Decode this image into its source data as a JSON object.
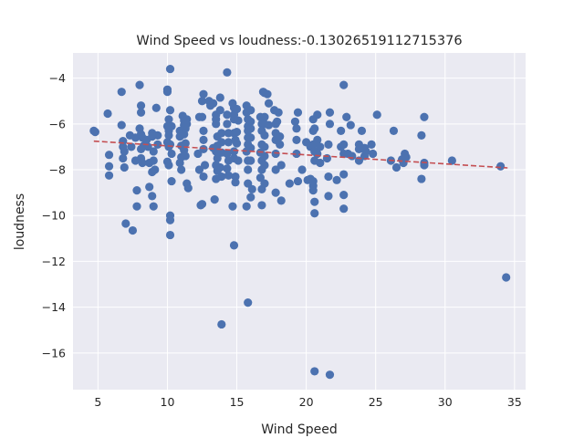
{
  "chart_data": {
    "type": "scatter",
    "title": "Wind Speed vs loudness:-0.13026519112715376",
    "xlabel": "Wind Speed",
    "ylabel": "loudness",
    "xlim": [
      3.2,
      35.8
    ],
    "ylim": [
      -17.6,
      -2.9
    ],
    "xticks": [
      5,
      10,
      15,
      20,
      25,
      30,
      35
    ],
    "yticks": [
      -16,
      -14,
      -12,
      -10,
      -8,
      -6,
      -4
    ],
    "grid": true,
    "colors": {
      "points": "#4c72b0",
      "trend": "#c44e52",
      "background": "#eaeaf2"
    },
    "trend_line": {
      "x": [
        4.7,
        34.5
      ],
      "y": [
        -6.75,
        -7.92
      ]
    },
    "points": [
      [
        4.7,
        -6.3
      ],
      [
        4.8,
        -6.35
      ],
      [
        5.7,
        -5.55
      ],
      [
        5.8,
        -7.35
      ],
      [
        5.8,
        -7.85
      ],
      [
        5.8,
        -8.25
      ],
      [
        6.7,
        -4.6
      ],
      [
        6.7,
        -6.05
      ],
      [
        6.8,
        -6.75
      ],
      [
        6.8,
        -7.0
      ],
      [
        6.9,
        -7.2
      ],
      [
        6.8,
        -7.5
      ],
      [
        6.9,
        -7.9
      ],
      [
        7.0,
        -10.35
      ],
      [
        7.3,
        -6.5
      ],
      [
        7.4,
        -7.0
      ],
      [
        7.5,
        -10.65
      ],
      [
        7.7,
        -6.6
      ],
      [
        7.7,
        -7.6
      ],
      [
        7.8,
        -8.9
      ],
      [
        7.8,
        -9.6
      ],
      [
        8.0,
        -4.3
      ],
      [
        8.1,
        -5.2
      ],
      [
        8.1,
        -5.5
      ],
      [
        8.0,
        -6.2
      ],
      [
        8.1,
        -6.45
      ],
      [
        8.2,
        -6.6
      ],
      [
        8.1,
        -7.1
      ],
      [
        8.1,
        -7.5
      ],
      [
        8.2,
        -7.7
      ],
      [
        8.3,
        -6.95
      ],
      [
        8.5,
        -6.7
      ],
      [
        8.6,
        -7.0
      ],
      [
        8.7,
        -7.7
      ],
      [
        8.7,
        -8.75
      ],
      [
        8.9,
        -6.4
      ],
      [
        8.9,
        -6.55
      ],
      [
        9.0,
        -7.2
      ],
      [
        9.0,
        -7.6
      ],
      [
        8.9,
        -8.1
      ],
      [
        9.1,
        -8.0
      ],
      [
        8.9,
        -9.15
      ],
      [
        9.0,
        -9.6
      ],
      [
        9.2,
        -5.3
      ],
      [
        9.3,
        -6.5
      ],
      [
        9.3,
        -6.9
      ],
      [
        10.0,
        -4.6
      ],
      [
        10.0,
        -4.5
      ],
      [
        10.1,
        -5.8
      ],
      [
        10.0,
        -6.1
      ],
      [
        10.1,
        -6.3
      ],
      [
        10.1,
        -6.5
      ],
      [
        10.0,
        -6.8
      ],
      [
        10.1,
        -7.0
      ],
      [
        10.0,
        -7.65
      ],
      [
        10.1,
        -7.8
      ],
      [
        10.2,
        -3.6
      ],
      [
        10.2,
        -5.4
      ],
      [
        10.3,
        -6.1
      ],
      [
        10.2,
        -6.9
      ],
      [
        10.3,
        -7.3
      ],
      [
        10.3,
        -8.5
      ],
      [
        10.2,
        -10.0
      ],
      [
        10.2,
        -10.2
      ],
      [
        10.2,
        -10.85
      ],
      [
        10.9,
        -6.3
      ],
      [
        10.9,
        -6.55
      ],
      [
        11.0,
        -6.95
      ],
      [
        11.0,
        -7.45
      ],
      [
        10.9,
        -7.7
      ],
      [
        11.0,
        -8.0
      ],
      [
        11.1,
        -5.65
      ],
      [
        11.2,
        -5.85
      ],
      [
        11.2,
        -6.05
      ],
      [
        11.2,
        -6.45
      ],
      [
        11.3,
        -6.85
      ],
      [
        11.2,
        -7.15
      ],
      [
        11.4,
        -5.8
      ],
      [
        11.4,
        -6.0
      ],
      [
        11.3,
        -6.2
      ],
      [
        11.4,
        -8.6
      ],
      [
        11.5,
        -8.8
      ],
      [
        11.3,
        -7.4
      ],
      [
        12.2,
        -7.3
      ],
      [
        12.3,
        -5.7
      ],
      [
        12.3,
        -8.0
      ],
      [
        12.4,
        -9.55
      ],
      [
        12.5,
        -5.0
      ],
      [
        12.5,
        -5.7
      ],
      [
        12.6,
        -4.7
      ],
      [
        12.6,
        -6.3
      ],
      [
        12.6,
        -6.7
      ],
      [
        12.6,
        -7.1
      ],
      [
        12.7,
        -7.8
      ],
      [
        12.6,
        -8.3
      ],
      [
        12.5,
        -9.5
      ],
      [
        13.0,
        -5.0
      ],
      [
        13.1,
        -5.2
      ],
      [
        13.3,
        -5.1
      ],
      [
        13.3,
        -7.05
      ],
      [
        13.4,
        -9.3
      ],
      [
        13.5,
        -5.6
      ],
      [
        13.5,
        -5.8
      ],
      [
        13.5,
        -6.0
      ],
      [
        13.6,
        -6.55
      ],
      [
        13.6,
        -6.95
      ],
      [
        13.5,
        -7.2
      ],
      [
        13.6,
        -7.5
      ],
      [
        13.5,
        -7.8
      ],
      [
        13.6,
        -8.05
      ],
      [
        13.5,
        -8.4
      ],
      [
        13.8,
        -4.85
      ],
      [
        13.8,
        -5.4
      ],
      [
        13.9,
        -6.4
      ],
      [
        13.9,
        -6.8
      ],
      [
        13.9,
        -7.25
      ],
      [
        13.8,
        -7.9
      ],
      [
        13.9,
        -8.3
      ],
      [
        13.9,
        -14.75
      ],
      [
        14.3,
        -3.75
      ],
      [
        14.3,
        -5.6
      ],
      [
        14.3,
        -6.0
      ],
      [
        14.4,
        -6.4
      ],
      [
        14.4,
        -6.8
      ],
      [
        14.3,
        -7.3
      ],
      [
        14.4,
        -7.6
      ],
      [
        14.3,
        -7.95
      ],
      [
        14.4,
        -8.25
      ],
      [
        14.7,
        -5.1
      ],
      [
        14.8,
        -5.3
      ],
      [
        14.8,
        -5.6
      ],
      [
        14.8,
        -5.8
      ],
      [
        14.8,
        -6.4
      ],
      [
        14.9,
        -6.7
      ],
      [
        14.8,
        -7.2
      ],
      [
        14.8,
        -7.5
      ],
      [
        14.9,
        -8.3
      ],
      [
        14.9,
        -8.55
      ],
      [
        14.7,
        -9.6
      ],
      [
        14.8,
        -11.3
      ],
      [
        15.0,
        -5.35
      ],
      [
        15.1,
        -5.85
      ],
      [
        15.0,
        -6.35
      ],
      [
        15.0,
        -6.85
      ],
      [
        15.1,
        -7.6
      ],
      [
        15.7,
        -5.2
      ],
      [
        15.7,
        -5.5
      ],
      [
        15.8,
        -5.8
      ],
      [
        15.8,
        -6.1
      ],
      [
        15.8,
        -6.3
      ],
      [
        15.8,
        -6.6
      ],
      [
        15.8,
        -6.9
      ],
      [
        15.7,
        -7.2
      ],
      [
        15.8,
        -7.6
      ],
      [
        15.8,
        -8.0
      ],
      [
        15.8,
        -8.6
      ],
      [
        15.7,
        -9.6
      ],
      [
        15.8,
        -13.8
      ],
      [
        16.0,
        -5.4
      ],
      [
        16.0,
        -5.9
      ],
      [
        16.0,
        -6.2
      ],
      [
        16.0,
        -6.6
      ],
      [
        16.0,
        -7.05
      ],
      [
        16.0,
        -7.6
      ],
      [
        16.1,
        -8.85
      ],
      [
        16.0,
        -9.2
      ],
      [
        16.7,
        -5.7
      ],
      [
        16.8,
        -6.0
      ],
      [
        16.8,
        -6.3
      ],
      [
        16.8,
        -6.9
      ],
      [
        16.7,
        -7.25
      ],
      [
        16.8,
        -7.6
      ],
      [
        16.8,
        -8.0
      ],
      [
        16.7,
        -8.35
      ],
      [
        16.8,
        -8.85
      ],
      [
        16.8,
        -9.55
      ],
      [
        16.9,
        -4.6
      ],
      [
        17.0,
        -4.65
      ],
      [
        17.0,
        -5.7
      ],
      [
        17.0,
        -6.0
      ],
      [
        17.0,
        -6.5
      ],
      [
        17.0,
        -7.0
      ],
      [
        17.0,
        -7.4
      ],
      [
        17.0,
        -7.8
      ],
      [
        17.0,
        -8.6
      ],
      [
        17.2,
        -4.7
      ],
      [
        17.3,
        -5.1
      ],
      [
        17.3,
        -6.05
      ],
      [
        17.7,
        -5.4
      ],
      [
        17.8,
        -6.0
      ],
      [
        17.8,
        -6.4
      ],
      [
        17.8,
        -6.7
      ],
      [
        17.8,
        -7.3
      ],
      [
        17.8,
        -8.0
      ],
      [
        17.8,
        -9.0
      ],
      [
        17.9,
        -5.9
      ],
      [
        18.0,
        -5.5
      ],
      [
        18.1,
        -6.55
      ],
      [
        18.1,
        -6.9
      ],
      [
        18.2,
        -7.8
      ],
      [
        18.2,
        -9.35
      ],
      [
        18.8,
        -8.6
      ],
      [
        19.2,
        -5.9
      ],
      [
        19.3,
        -6.2
      ],
      [
        19.3,
        -6.7
      ],
      [
        19.3,
        -7.3
      ],
      [
        19.4,
        -5.5
      ],
      [
        19.4,
        -8.5
      ],
      [
        19.7,
        -8.0
      ],
      [
        20.0,
        -6.8
      ],
      [
        20.1,
        -8.45
      ],
      [
        20.3,
        -7.0
      ],
      [
        20.3,
        -8.4
      ],
      [
        20.5,
        -5.8
      ],
      [
        20.6,
        -6.2
      ],
      [
        20.5,
        -6.3
      ],
      [
        20.5,
        -6.9
      ],
      [
        20.6,
        -7.2
      ],
      [
        20.6,
        -7.6
      ],
      [
        20.5,
        -8.5
      ],
      [
        20.5,
        -8.7
      ],
      [
        20.5,
        -8.9
      ],
      [
        20.6,
        -9.4
      ],
      [
        20.6,
        -9.9
      ],
      [
        20.6,
        -16.8
      ],
      [
        20.8,
        -5.6
      ],
      [
        20.8,
        -6.7
      ],
      [
        20.8,
        -7.3
      ],
      [
        21.0,
        -7.0
      ],
      [
        21.0,
        -7.7
      ],
      [
        21.5,
        -7.5
      ],
      [
        21.6,
        -6.9
      ],
      [
        21.6,
        -8.3
      ],
      [
        21.6,
        -9.15
      ],
      [
        21.7,
        -5.5
      ],
      [
        21.7,
        -6.0
      ],
      [
        21.7,
        -16.95
      ],
      [
        22.2,
        -8.45
      ],
      [
        22.5,
        -6.3
      ],
      [
        22.5,
        -7.0
      ],
      [
        22.7,
        -4.3
      ],
      [
        22.7,
        -6.9
      ],
      [
        22.7,
        -7.3
      ],
      [
        22.7,
        -8.2
      ],
      [
        22.7,
        -9.1
      ],
      [
        22.7,
        -9.7
      ],
      [
        22.9,
        -5.7
      ],
      [
        23.0,
        -7.3
      ],
      [
        23.2,
        -6.05
      ],
      [
        23.3,
        -7.4
      ],
      [
        23.8,
        -6.9
      ],
      [
        23.8,
        -7.1
      ],
      [
        23.8,
        -7.6
      ],
      [
        24.0,
        -6.3
      ],
      [
        24.2,
        -7.05
      ],
      [
        24.2,
        -7.4
      ],
      [
        24.3,
        -7.2
      ],
      [
        24.7,
        -6.9
      ],
      [
        24.8,
        -7.3
      ],
      [
        25.1,
        -5.6
      ],
      [
        26.1,
        -7.6
      ],
      [
        26.3,
        -6.3
      ],
      [
        26.5,
        -7.9
      ],
      [
        26.9,
        -7.55
      ],
      [
        27.0,
        -7.7
      ],
      [
        27.1,
        -7.3
      ],
      [
        27.2,
        -7.45
      ],
      [
        28.3,
        -6.5
      ],
      [
        28.3,
        -8.4
      ],
      [
        28.5,
        -5.7
      ],
      [
        28.5,
        -7.7
      ],
      [
        28.5,
        -7.8
      ],
      [
        30.5,
        -7.6
      ],
      [
        34.0,
        -7.85
      ],
      [
        34.4,
        -12.7
      ]
    ]
  }
}
